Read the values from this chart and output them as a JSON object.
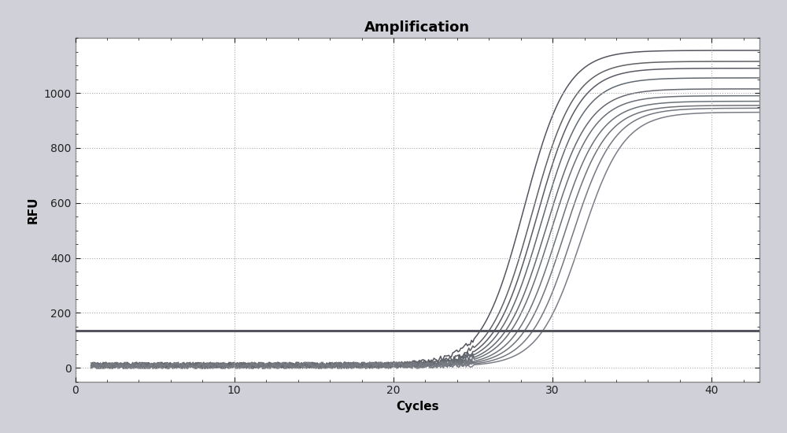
{
  "title": "Amplification",
  "xlabel": "Cycles",
  "ylabel": "RFU",
  "xlim": [
    0,
    43
  ],
  "ylim": [
    -50,
    1200
  ],
  "yticks": [
    0,
    200,
    400,
    600,
    800,
    1000
  ],
  "xticks": [
    0,
    10,
    20,
    30,
    40
  ],
  "threshold": 135,
  "outer_bg_color": "#d0d0d8",
  "plot_bg_color": "#ffffff",
  "title_fontsize": 13,
  "axis_label_fontsize": 11,
  "curve_params": [
    {
      "L": 1150,
      "k": 0.75,
      "x0": 28.2,
      "color": "#555560"
    },
    {
      "L": 1110,
      "k": 0.75,
      "x0": 28.7,
      "color": "#606065"
    },
    {
      "L": 1085,
      "k": 0.75,
      "x0": 29.0,
      "color": "#5a5a65"
    },
    {
      "L": 1050,
      "k": 0.75,
      "x0": 29.3,
      "color": "#606870"
    },
    {
      "L": 1010,
      "k": 0.75,
      "x0": 29.6,
      "color": "#656870"
    },
    {
      "L": 985,
      "k": 0.75,
      "x0": 29.9,
      "color": "#6a6e75"
    },
    {
      "L": 965,
      "k": 0.75,
      "x0": 30.3,
      "color": "#6a7278"
    },
    {
      "L": 950,
      "k": 0.75,
      "x0": 30.7,
      "color": "#707278"
    },
    {
      "L": 940,
      "k": 0.75,
      "x0": 31.2,
      "color": "#757880"
    },
    {
      "L": 925,
      "k": 0.75,
      "x0": 31.8,
      "color": "#7a7d85"
    }
  ],
  "threshold_color": "#555560",
  "threshold_lw": 2.2,
  "curve_lw": 1.1,
  "grid_color": "#aaaaaa",
  "border_color": "#888888"
}
